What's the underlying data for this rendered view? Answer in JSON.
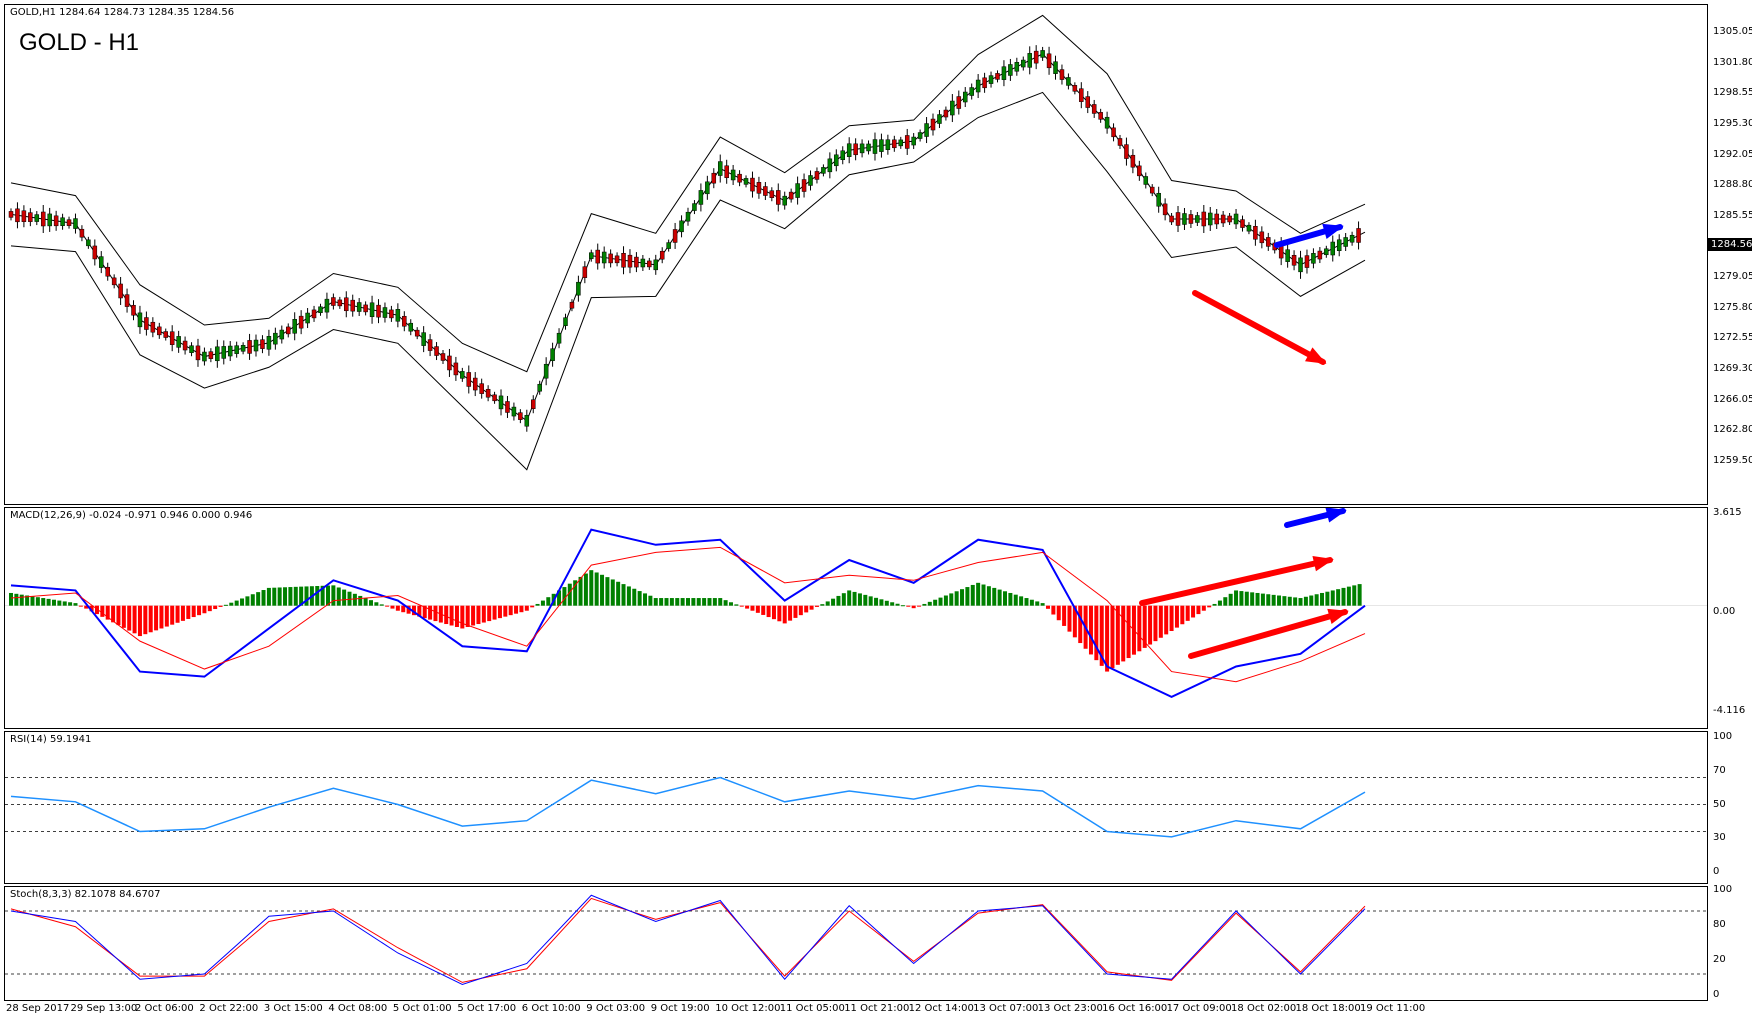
{
  "header": {
    "symbol_line": "GOLD,H1  1284.64 1284.73 1284.35 1284.56",
    "chart_title": "GOLD - H1",
    "current_price": "1284.56"
  },
  "colors": {
    "bull_candle": "#008000",
    "bear_candle": "#cc0000",
    "bands": "#000000",
    "macd_line": "#0000ff",
    "signal_line": "#ff0000",
    "hist_pos": "#008000",
    "hist_neg": "#ff0000",
    "rsi_line": "#1e90ff",
    "stoch_main": "#0000ff",
    "stoch_signal": "#ff0000",
    "arrow_blue": "#0000ff",
    "arrow_red": "#ff0000"
  },
  "panes": {
    "macd_label": "MACD(12,26,9) -0.024 -0.971 0.946 0.000 0.946",
    "rsi_label": "RSI(14) 59.1941",
    "stoch_label": "Stoch(8,3,3) 82.1078 84.6707"
  },
  "axes": {
    "price_ticks": [
      "1305.05",
      "1301.80",
      "1298.55",
      "1295.30",
      "1292.05",
      "1288.80",
      "1285.55",
      "1282.30",
      "1279.05",
      "1275.80",
      "1272.55",
      "1269.30",
      "1266.05",
      "1262.80",
      "1259.50"
    ],
    "macd_ticks": [
      "3.615",
      "0.00",
      "-4.116"
    ],
    "rsi_ticks": [
      "100",
      "70",
      "50",
      "30",
      "0"
    ],
    "stoch_ticks": [
      "100",
      "80",
      "20",
      "0"
    ],
    "time_labels": [
      "28 Sep 2017",
      "29 Sep 13:00",
      "2 Oct 06:00",
      "2 Oct 22:00",
      "3 Oct 15:00",
      "4 Oct 08:00",
      "5 Oct 01:00",
      "5 Oct 17:00",
      "6 Oct 10:00",
      "9 Oct 03:00",
      "9 Oct 19:00",
      "10 Oct 12:00",
      "11 Oct 05:00",
      "11 Oct 21:00",
      "12 Oct 14:00",
      "13 Oct 07:00",
      "13 Oct 23:00",
      "16 Oct 16:00",
      "17 Oct 09:00",
      "18 Oct 02:00",
      "18 Oct 18:00",
      "19 Oct 11:00"
    ]
  },
  "chart_data": [
    {
      "type": "line",
      "name": "price",
      "title": "GOLD - H1",
      "x": [
        "28 Sep 2017",
        "29 Sep 13:00",
        "2 Oct 06:00",
        "2 Oct 22:00",
        "3 Oct 15:00",
        "4 Oct 08:00",
        "5 Oct 01:00",
        "5 Oct 17:00",
        "6 Oct 10:00",
        "9 Oct 03:00",
        "9 Oct 19:00",
        "10 Oct 12:00",
        "11 Oct 05:00",
        "11 Oct 21:00",
        "12 Oct 14:00",
        "13 Oct 07:00",
        "13 Oct 23:00",
        "16 Oct 16:00",
        "17 Oct 09:00",
        "18 Oct 02:00",
        "18 Oct 18:00",
        "19 Oct 11:00"
      ],
      "series": [
        {
          "values": [
            1286.5,
            1285.5,
            1275.0,
            1271.0,
            1272.5,
            1277.0,
            1275.5,
            1269.0,
            1264.0,
            1282.0,
            1281.0,
            1291.5,
            1288.0,
            1293.5,
            1294.5,
            1300.5,
            1304.0,
            1296.5,
            1286.0,
            1286.0,
            1281.0,
            1284.56
          ]
        }
      ],
      "ylim": [
        1259.5,
        1306.5
      ],
      "grid": false
    },
    {
      "type": "bar",
      "name": "macd",
      "x": [
        "28 Sep 2017",
        "29 Sep 13:00",
        "2 Oct 06:00",
        "2 Oct 22:00",
        "3 Oct 15:00",
        "4 Oct 08:00",
        "5 Oct 01:00",
        "5 Oct 17:00",
        "6 Oct 10:00",
        "9 Oct 03:00",
        "9 Oct 19:00",
        "10 Oct 12:00",
        "11 Oct 05:00",
        "11 Oct 21:00",
        "12 Oct 14:00",
        "13 Oct 07:00",
        "13 Oct 23:00",
        "16 Oct 16:00",
        "17 Oct 09:00",
        "18 Oct 02:00",
        "18 Oct 18:00",
        "19 Oct 11:00"
      ],
      "series": [
        {
          "values": [
            0.8,
            0.6,
            -2.6,
            -2.8,
            -0.9,
            1.0,
            0.2,
            -1.6,
            -1.8,
            3.0,
            2.4,
            2.6,
            0.2,
            1.8,
            0.9,
            2.6,
            2.2,
            -2.4,
            -3.6,
            -2.4,
            -1.9,
            0.0
          ]
        },
        {
          "values": [
            0.3,
            0.5,
            -1.4,
            -2.5,
            -1.6,
            0.2,
            0.4,
            -0.7,
            -1.6,
            1.6,
            2.1,
            2.3,
            0.9,
            1.2,
            1.0,
            1.7,
            2.1,
            0.2,
            -2.6,
            -3.0,
            -2.2,
            -1.1
          ]
        },
        {
          "values": [
            0.5,
            0.1,
            -1.2,
            -0.3,
            0.7,
            0.8,
            -0.2,
            -0.9,
            -0.2,
            1.4,
            0.3,
            0.3,
            -0.7,
            0.6,
            -0.1,
            0.9,
            0.1,
            -2.6,
            -1.0,
            0.6,
            0.3,
            0.9
          ]
        }
      ],
      "ylim": [
        -4.116,
        3.615
      ]
    },
    {
      "type": "line",
      "name": "rsi",
      "x": [
        "28 Sep 2017",
        "29 Sep 13:00",
        "2 Oct 06:00",
        "2 Oct 22:00",
        "3 Oct 15:00",
        "4 Oct 08:00",
        "5 Oct 01:00",
        "5 Oct 17:00",
        "6 Oct 10:00",
        "9 Oct 03:00",
        "9 Oct 19:00",
        "10 Oct 12:00",
        "11 Oct 05:00",
        "11 Oct 21:00",
        "12 Oct 14:00",
        "13 Oct 07:00",
        "13 Oct 23:00",
        "16 Oct 16:00",
        "17 Oct 09:00",
        "18 Oct 02:00",
        "18 Oct 18:00",
        "19 Oct 11:00"
      ],
      "series": [
        {
          "values": [
            56,
            52,
            30,
            32,
            48,
            62,
            50,
            34,
            38,
            68,
            58,
            70,
            52,
            60,
            54,
            64,
            60,
            30,
            26,
            38,
            32,
            59.19
          ]
        }
      ],
      "ylim": [
        0,
        100
      ]
    },
    {
      "type": "line",
      "name": "stoch",
      "x": [
        "28 Sep 2017",
        "29 Sep 13:00",
        "2 Oct 06:00",
        "2 Oct 22:00",
        "3 Oct 15:00",
        "4 Oct 08:00",
        "5 Oct 01:00",
        "5 Oct 17:00",
        "6 Oct 10:00",
        "9 Oct 03:00",
        "9 Oct 19:00",
        "10 Oct 12:00",
        "11 Oct 05:00",
        "11 Oct 21:00",
        "12 Oct 14:00",
        "13 Oct 07:00",
        "13 Oct 23:00",
        "16 Oct 16:00",
        "17 Oct 09:00",
        "18 Oct 02:00",
        "18 Oct 18:00",
        "19 Oct 11:00"
      ],
      "series": [
        {
          "values": [
            80,
            70,
            15,
            20,
            75,
            80,
            40,
            10,
            30,
            95,
            70,
            90,
            15,
            85,
            30,
            80,
            85,
            20,
            15,
            80,
            20,
            82.11
          ]
        },
        {
          "values": [
            82,
            65,
            18,
            18,
            70,
            82,
            45,
            12,
            25,
            92,
            72,
            88,
            18,
            80,
            32,
            78,
            86,
            22,
            14,
            78,
            22,
            84.67
          ]
        }
      ],
      "ylim": [
        0,
        100
      ]
    }
  ]
}
